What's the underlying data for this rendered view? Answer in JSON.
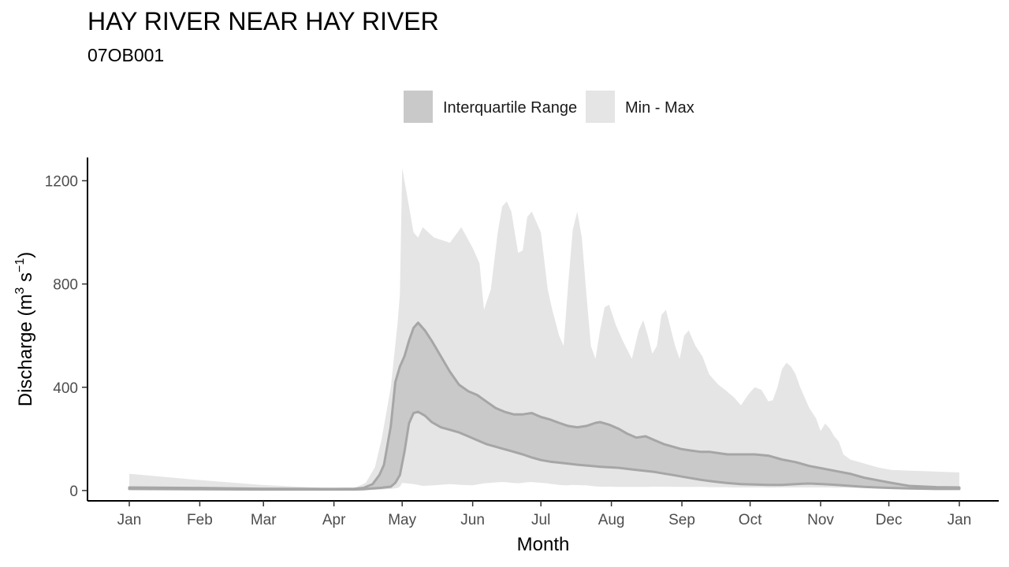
{
  "chart_data": {
    "type": "area",
    "title": "HAY RIVER NEAR HAY RIVER",
    "subtitle": "07OB001",
    "xlabel": "Month",
    "ylabel": "Discharge (m",
    "ylabel_sup1": "3",
    "ylabel_mid": " s",
    "ylabel_sup2": "−1",
    "ylabel_end": ")",
    "x_ticks": [
      "Jan",
      "Feb",
      "Mar",
      "Apr",
      "May",
      "Jun",
      "Jul",
      "Aug",
      "Sep",
      "Oct",
      "Nov",
      "Dec",
      "Jan"
    ],
    "y_ticks": [
      0,
      400,
      800,
      1200
    ],
    "ylim": [
      -40,
      1290
    ],
    "legend": [
      {
        "label": "Interquartile Range",
        "color": "#c9c9c9"
      },
      {
        "label": "Min - Max",
        "color": "#e5e5e5"
      }
    ],
    "colors": {
      "iqr": "#c9c9c9",
      "minmax": "#e5e5e5",
      "iqr_line": "#a6a6a6"
    },
    "x_unit": "day of year",
    "x_range": [
      1,
      366
    ],
    "series": [
      {
        "name": "Min - Max",
        "points": [
          [
            1,
            5,
            65
          ],
          [
            30,
            4,
            42
          ],
          [
            59,
            3,
            22
          ],
          [
            91,
            1,
            8
          ],
          [
            100,
            1,
            9
          ],
          [
            105,
            2,
            30
          ],
          [
            109,
            3,
            90
          ],
          [
            112,
            4,
            200
          ],
          [
            116,
            6,
            400
          ],
          [
            119,
            10,
            650
          ],
          [
            120,
            15,
            760
          ],
          [
            121,
            30,
            1250
          ],
          [
            123,
            28,
            1150
          ],
          [
            126,
            25,
            1000
          ],
          [
            128,
            22,
            980
          ],
          [
            130,
            18,
            1020
          ],
          [
            135,
            20,
            980
          ],
          [
            142,
            25,
            960
          ],
          [
            147,
            22,
            1020
          ],
          [
            152,
            20,
            940
          ],
          [
            155,
            25,
            880
          ],
          [
            157,
            28,
            700
          ],
          [
            160,
            30,
            780
          ],
          [
            163,
            32,
            1000
          ],
          [
            165,
            33,
            1100
          ],
          [
            167,
            32,
            1120
          ],
          [
            169,
            30,
            1080
          ],
          [
            172,
            28,
            920
          ],
          [
            174,
            30,
            930
          ],
          [
            176,
            32,
            1060
          ],
          [
            178,
            33,
            1080
          ],
          [
            182,
            30,
            1000
          ],
          [
            185,
            28,
            780
          ],
          [
            187,
            25,
            700
          ],
          [
            190,
            22,
            600
          ],
          [
            192,
            20,
            560
          ],
          [
            194,
            20,
            800
          ],
          [
            196,
            22,
            1010
          ],
          [
            198,
            21,
            1080
          ],
          [
            200,
            20,
            980
          ],
          [
            202,
            20,
            760
          ],
          [
            204,
            18,
            560
          ],
          [
            206,
            16,
            510
          ],
          [
            208,
            15,
            620
          ],
          [
            210,
            15,
            710
          ],
          [
            212,
            15,
            720
          ],
          [
            215,
            14,
            640
          ],
          [
            218,
            14,
            580
          ],
          [
            222,
            14,
            510
          ],
          [
            225,
            14,
            620
          ],
          [
            227,
            14,
            660
          ],
          [
            229,
            14,
            600
          ],
          [
            231,
            15,
            530
          ],
          [
            233,
            15,
            560
          ],
          [
            235,
            15,
            680
          ],
          [
            237,
            15,
            700
          ],
          [
            241,
            14,
            560
          ],
          [
            243,
            14,
            510
          ],
          [
            245,
            14,
            600
          ],
          [
            247,
            14,
            620
          ],
          [
            250,
            14,
            560
          ],
          [
            253,
            14,
            520
          ],
          [
            256,
            13,
            450
          ],
          [
            260,
            13,
            410
          ],
          [
            263,
            13,
            390
          ],
          [
            267,
            12,
            360
          ],
          [
            270,
            12,
            330
          ],
          [
            273,
            12,
            370
          ],
          [
            276,
            12,
            400
          ],
          [
            279,
            12,
            390
          ],
          [
            282,
            11,
            345
          ],
          [
            284,
            11,
            350
          ],
          [
            286,
            12,
            400
          ],
          [
            288,
            12,
            470
          ],
          [
            290,
            12,
            495
          ],
          [
            292,
            12,
            480
          ],
          [
            294,
            12,
            450
          ],
          [
            296,
            12,
            400
          ],
          [
            300,
            12,
            320
          ],
          [
            303,
            12,
            280
          ],
          [
            305,
            12,
            230
          ],
          [
            307,
            12,
            260
          ],
          [
            309,
            12,
            240
          ],
          [
            311,
            11,
            210
          ],
          [
            313,
            11,
            190
          ],
          [
            315,
            11,
            140
          ],
          [
            318,
            11,
            120
          ],
          [
            322,
            10,
            110
          ],
          [
            330,
            10,
            90
          ],
          [
            336,
            8,
            80
          ],
          [
            350,
            6,
            75
          ],
          [
            366,
            5,
            70
          ]
        ]
      },
      {
        "name": "Interquartile Range",
        "points": [
          [
            1,
            6,
            12
          ],
          [
            30,
            5,
            10
          ],
          [
            59,
            4,
            7
          ],
          [
            91,
            4,
            6
          ],
          [
            100,
            4,
            7
          ],
          [
            104,
            5,
            10
          ],
          [
            108,
            8,
            25
          ],
          [
            111,
            10,
            60
          ],
          [
            113,
            12,
            100
          ],
          [
            116,
            15,
            250
          ],
          [
            118,
            30,
            420
          ],
          [
            120,
            60,
            480
          ],
          [
            122,
            150,
            520
          ],
          [
            124,
            260,
            580
          ],
          [
            126,
            300,
            630
          ],
          [
            128,
            305,
            650
          ],
          [
            131,
            290,
            620
          ],
          [
            134,
            265,
            580
          ],
          [
            138,
            245,
            520
          ],
          [
            142,
            235,
            460
          ],
          [
            146,
            225,
            410
          ],
          [
            150,
            210,
            385
          ],
          [
            154,
            195,
            370
          ],
          [
            158,
            180,
            345
          ],
          [
            162,
            170,
            320
          ],
          [
            166,
            160,
            305
          ],
          [
            170,
            150,
            295
          ],
          [
            174,
            140,
            295
          ],
          [
            178,
            128,
            300
          ],
          [
            182,
            118,
            285
          ],
          [
            186,
            112,
            275
          ],
          [
            190,
            108,
            262
          ],
          [
            194,
            104,
            250
          ],
          [
            198,
            100,
            245
          ],
          [
            202,
            97,
            250
          ],
          [
            206,
            94,
            262
          ],
          [
            208,
            92,
            265
          ],
          [
            212,
            90,
            255
          ],
          [
            216,
            88,
            240
          ],
          [
            220,
            84,
            220
          ],
          [
            224,
            80,
            205
          ],
          [
            228,
            76,
            210
          ],
          [
            232,
            72,
            195
          ],
          [
            236,
            66,
            180
          ],
          [
            240,
            60,
            170
          ],
          [
            244,
            54,
            160
          ],
          [
            248,
            48,
            155
          ],
          [
            252,
            42,
            150
          ],
          [
            256,
            37,
            150
          ],
          [
            260,
            33,
            145
          ],
          [
            264,
            29,
            140
          ],
          [
            270,
            25,
            140
          ],
          [
            276,
            23,
            140
          ],
          [
            282,
            22,
            135
          ],
          [
            288,
            22,
            120
          ],
          [
            294,
            25,
            110
          ],
          [
            300,
            27,
            95
          ],
          [
            306,
            25,
            85
          ],
          [
            312,
            22,
            75
          ],
          [
            318,
            18,
            65
          ],
          [
            324,
            14,
            50
          ],
          [
            330,
            12,
            40
          ],
          [
            336,
            10,
            30
          ],
          [
            344,
            8,
            18
          ],
          [
            356,
            6,
            13
          ],
          [
            366,
            6,
            12
          ]
        ]
      }
    ]
  }
}
